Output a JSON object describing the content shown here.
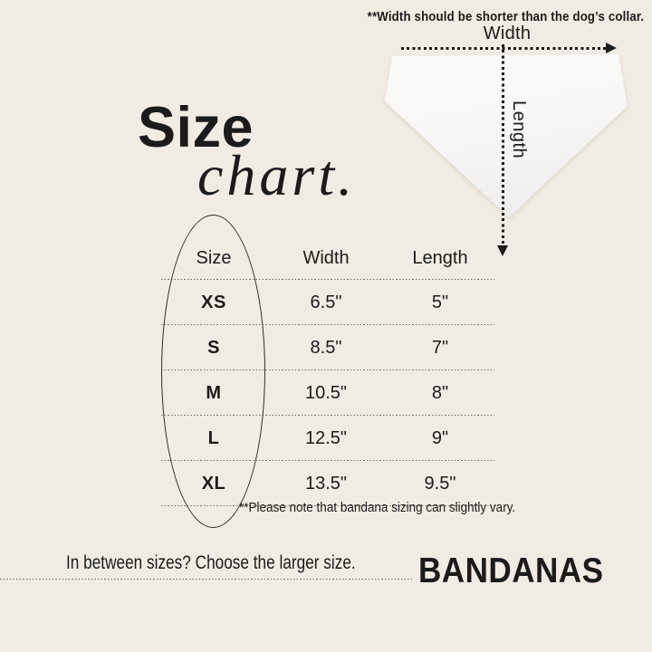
{
  "colors": {
    "background": "#f1ece3",
    "ink": "#1b1b1b",
    "bandana_fill": "#f8f7f5"
  },
  "top_note": "**Width should be shorter than the dog’s collar.",
  "diagram": {
    "width_label": "Width",
    "length_label": "Length"
  },
  "title": {
    "line1": "Size",
    "line2": "chart."
  },
  "table": {
    "headers": [
      "Size",
      "Width",
      "Length"
    ],
    "rows": [
      {
        "size": "XS",
        "width": "6.5\"",
        "length": "5\""
      },
      {
        "size": "S",
        "width": "8.5\"",
        "length": "7\""
      },
      {
        "size": "M",
        "width": "10.5\"",
        "length": "8\""
      },
      {
        "size": "L",
        "width": "12.5\"",
        "length": "9\""
      },
      {
        "size": "XL",
        "width": "13.5\"",
        "length": "9.5\""
      }
    ],
    "note": "**Please note that bandana sizing can slightly vary."
  },
  "footer": {
    "tip": "In between sizes? Choose the larger size.",
    "brand": "BANDANAS"
  }
}
